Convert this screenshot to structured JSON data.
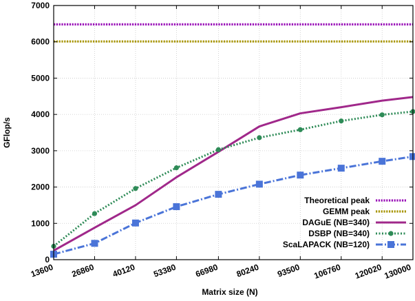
{
  "chart_data": {
    "type": "line",
    "xlabel": "Matrix size (N)",
    "ylabel": "GFlop/s",
    "xlim": [
      13600,
      130000
    ],
    "ylim": [
      0,
      7000
    ],
    "grid": true,
    "legend_position": "bottom-right",
    "x_ticks": [
      13600,
      26860,
      40120,
      53380,
      66980,
      80240,
      93500,
      106760,
      120020,
      130000
    ],
    "y_ticks": [
      0,
      1000,
      2000,
      3000,
      4000,
      5000,
      6000,
      7000
    ],
    "series": [
      {
        "name": "Theoretical peak",
        "color": "#9a10b8",
        "style": "dotted-heavy",
        "marker": "none",
        "x": [
          13600,
          130000
        ],
        "values": [
          6480,
          6480
        ]
      },
      {
        "name": "GEMM peak",
        "color": "#a89500",
        "style": "dotted-heavy",
        "marker": "none",
        "x": [
          13600,
          130000
        ],
        "values": [
          6010,
          6010
        ]
      },
      {
        "name": "DAGuE (NB=340)",
        "color": "#a0288a",
        "style": "solid",
        "marker": "none",
        "x": [
          13600,
          26860,
          40120,
          53380,
          66980,
          80240,
          93500,
          106760,
          120020,
          130000
        ],
        "values": [
          250,
          880,
          1500,
          2270,
          2970,
          3670,
          4030,
          4200,
          4380,
          4480
        ]
      },
      {
        "name": "DSBP (NB=340)",
        "color": "#2e8b57",
        "style": "dotted",
        "marker": "circle",
        "x": [
          13600,
          26860,
          40120,
          53380,
          66980,
          80240,
          93500,
          106760,
          120020,
          130000
        ],
        "values": [
          370,
          1270,
          1960,
          2530,
          3030,
          3360,
          3580,
          3820,
          3990,
          4080
        ]
      },
      {
        "name": "ScaLAPACK (NB=120)",
        "color": "#4a74d8",
        "style": "dashdot",
        "marker": "square",
        "x": [
          13600,
          26860,
          40120,
          53380,
          66980,
          80240,
          93500,
          106760,
          120020,
          130000
        ],
        "values": [
          150,
          450,
          1010,
          1460,
          1800,
          2080,
          2330,
          2520,
          2710,
          2840
        ]
      }
    ]
  }
}
